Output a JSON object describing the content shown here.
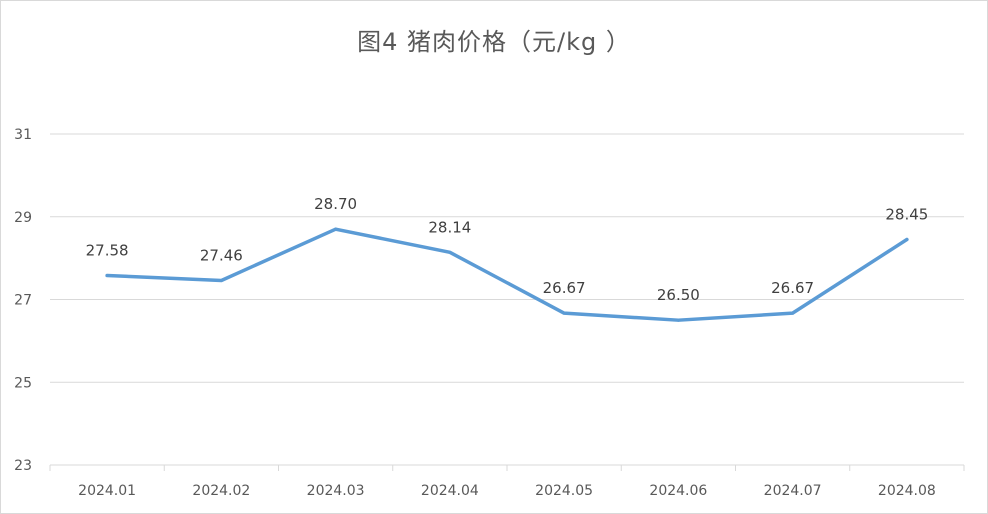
{
  "chart_data": {
    "type": "line",
    "title": "图4  猪肉价格（元/kg ）",
    "categories": [
      "2024.01",
      "2024.02",
      "2024.03",
      "2024.04",
      "2024.05",
      "2024.06",
      "2024.07",
      "2024.08"
    ],
    "series": [
      {
        "values": [
          27.58,
          27.46,
          28.7,
          28.14,
          26.67,
          26.5,
          26.67,
          28.45
        ],
        "labels": [
          "27.58",
          "27.46",
          "28.70",
          "28.14",
          "26.67",
          "26.50",
          "26.67",
          "28.45"
        ]
      }
    ],
    "yticks": [
      "23",
      "25",
      "27",
      "29",
      "31"
    ],
    "ylim": [
      23,
      31
    ],
    "grid": true,
    "legend": "none",
    "colors": {
      "line": "#5b9bd5",
      "grid": "#d9d9d9",
      "text": "#595959"
    }
  }
}
